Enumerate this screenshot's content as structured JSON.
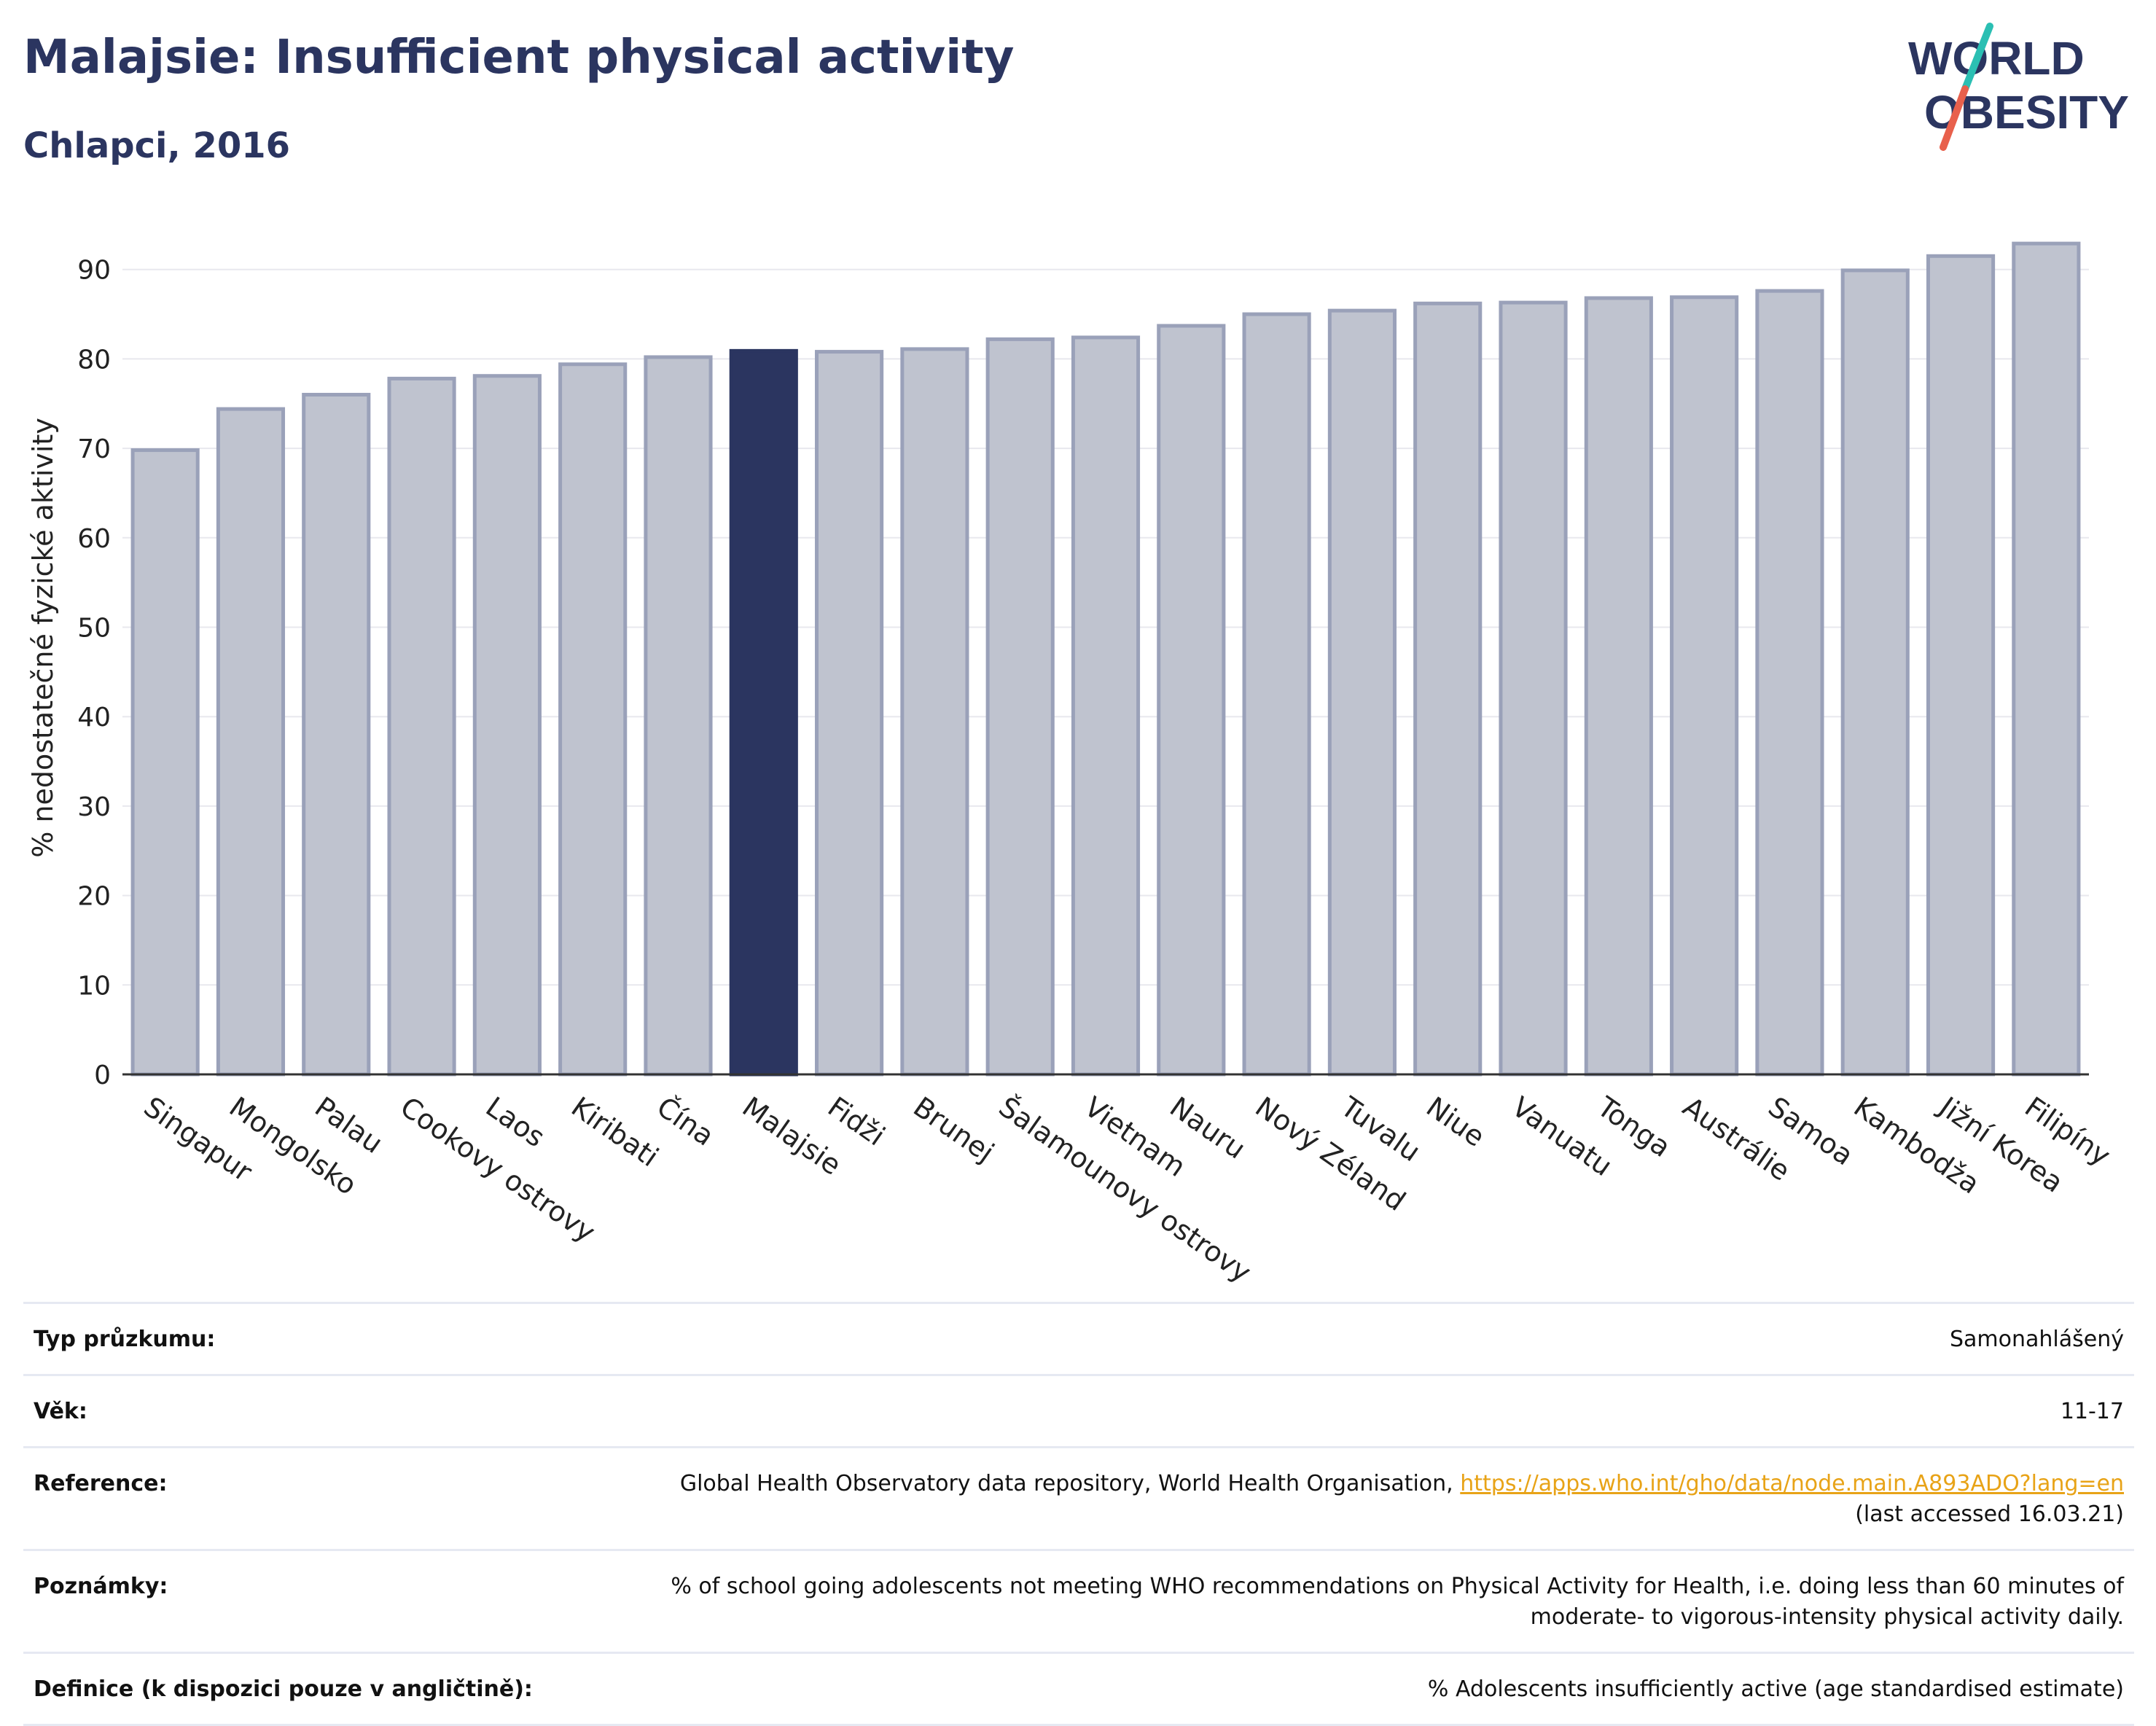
{
  "header": {
    "title": "Malajsie: Insufficient physical activity",
    "subtitle": "Chlapci, 2016"
  },
  "logo": {
    "line1": "WORLD",
    "line2": "OBESITY",
    "colors": {
      "text": "#2b3560",
      "slash_top": "#2bbfb3",
      "slash_bottom": "#e8604c"
    }
  },
  "colors": {
    "bar_default": "#bfc3cf",
    "bar_default_border": "#9aa1b9",
    "bar_highlight": "#2b3560",
    "grid": "#e8e8ee",
    "axis": "#333333"
  },
  "chart_data": {
    "type": "bar",
    "ylabel": "% nedostatečné fyzické aktivity",
    "ylim": [
      0,
      95
    ],
    "yticks": [
      0,
      10,
      20,
      30,
      40,
      50,
      60,
      70,
      80,
      90
    ],
    "grid": true,
    "highlight": "Malajsie",
    "categories": [
      "Singapur",
      "Mongolsko",
      "Palau",
      "Cookovy ostrovy",
      "Laos",
      "Kiribati",
      "Čína",
      "Malajsie",
      "Fidži",
      "Brunej",
      "Šalamounovy ostrovy",
      "Vietnam",
      "Nauru",
      "Nový Zéland",
      "Tuvalu",
      "Niue",
      "Vanuatu",
      "Tonga",
      "Austrálie",
      "Samoa",
      "Kambodža",
      "Jižní Korea",
      "Filipíny"
    ],
    "values": [
      69.8,
      74.4,
      76.0,
      77.8,
      78.1,
      79.4,
      80.2,
      80.9,
      80.8,
      81.1,
      82.2,
      82.4,
      83.7,
      85.0,
      85.4,
      86.2,
      86.3,
      86.8,
      86.9,
      87.6,
      89.9,
      91.5,
      92.9
    ]
  },
  "info": {
    "survey": {
      "label": "Typ průzkumu:",
      "value": "Samonahlášený"
    },
    "age": {
      "label": "Věk:",
      "value": "11-17"
    },
    "reference": {
      "label": "Reference:",
      "text": "Global Health Observatory data repository, World Health Organisation,",
      "link": "https://apps.who.int/gho/data/node.main.A893ADO?lang=en",
      "accessed": "(last accessed 16.03.21)"
    },
    "notes": {
      "label": "Poznámky:",
      "line1": "% of school going adolescents not meeting WHO recommendations on Physical Activity for Health, i.e. doing less than 60 minutes of",
      "line2": "moderate- to vigorous-intensity physical activity daily."
    },
    "definition": {
      "label": "Definice (k dispozici pouze v angličtině):",
      "value": "% Adolescents insufficiently active (age standardised estimate)"
    }
  }
}
